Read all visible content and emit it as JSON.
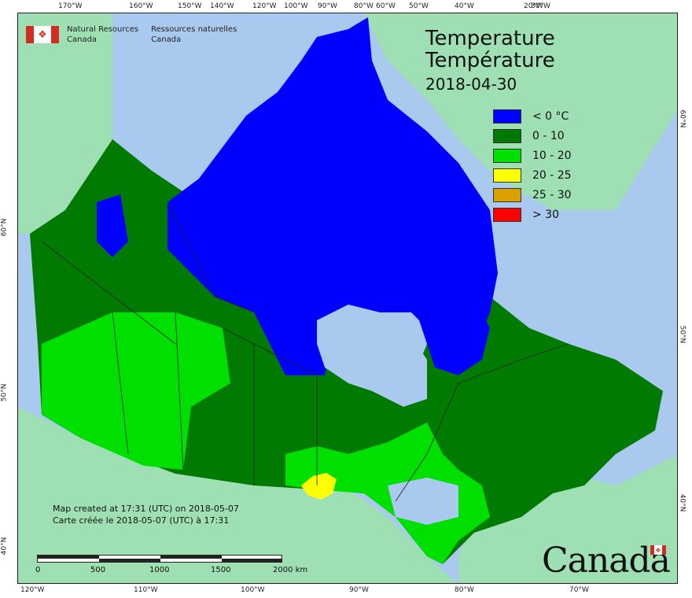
{
  "header": {
    "agency_en_line1": "Natural Resources",
    "agency_en_line2": "Canada",
    "agency_fr_line1": "Ressources naturelles",
    "agency_fr_line2": "Canada",
    "flag_icon": "maple-leaf-icon"
  },
  "title": {
    "en": "Temperature",
    "fr": "Température",
    "date": "2018-04-30"
  },
  "legend": [
    {
      "label": "< 0 °C",
      "color": "#0000ff"
    },
    {
      "label": "0 - 10",
      "color": "#007a00"
    },
    {
      "label": "10 - 20",
      "color": "#00e000"
    },
    {
      "label": "20 - 25",
      "color": "#ffff00"
    },
    {
      "label": "25 - 30",
      "color": "#d9a000"
    },
    {
      "label": "> 30",
      "color": "#ff0000"
    }
  ],
  "ticks": {
    "top": [
      "170°W",
      "160°W",
      "150°W",
      "140°W",
      "120°W",
      "100°W",
      "90°W",
      "80°W",
      "60°W",
      "50°W",
      "40°W",
      "30°W",
      "20°W"
    ],
    "bottom": [
      "120°W",
      "110°W",
      "100°W",
      "90°W",
      "80°W",
      "70°W"
    ],
    "left": [
      "60°N",
      "50°N",
      "40°N"
    ],
    "right": [
      "60°N",
      "50°N",
      "40°N"
    ]
  },
  "credit": {
    "en": "Map created at 17:31 (UTC) on 2018-05-07",
    "fr": "Carte créée le 2018-05-07 (UTC) à 17:31"
  },
  "scale": {
    "labels": [
      "0",
      "500",
      "1000",
      "1500",
      "2000 km"
    ]
  },
  "wordmark": "Canada",
  "colors": {
    "water": "#a9c9ee",
    "foreign_land": "#9ee0b4",
    "province_border": "#222222"
  }
}
